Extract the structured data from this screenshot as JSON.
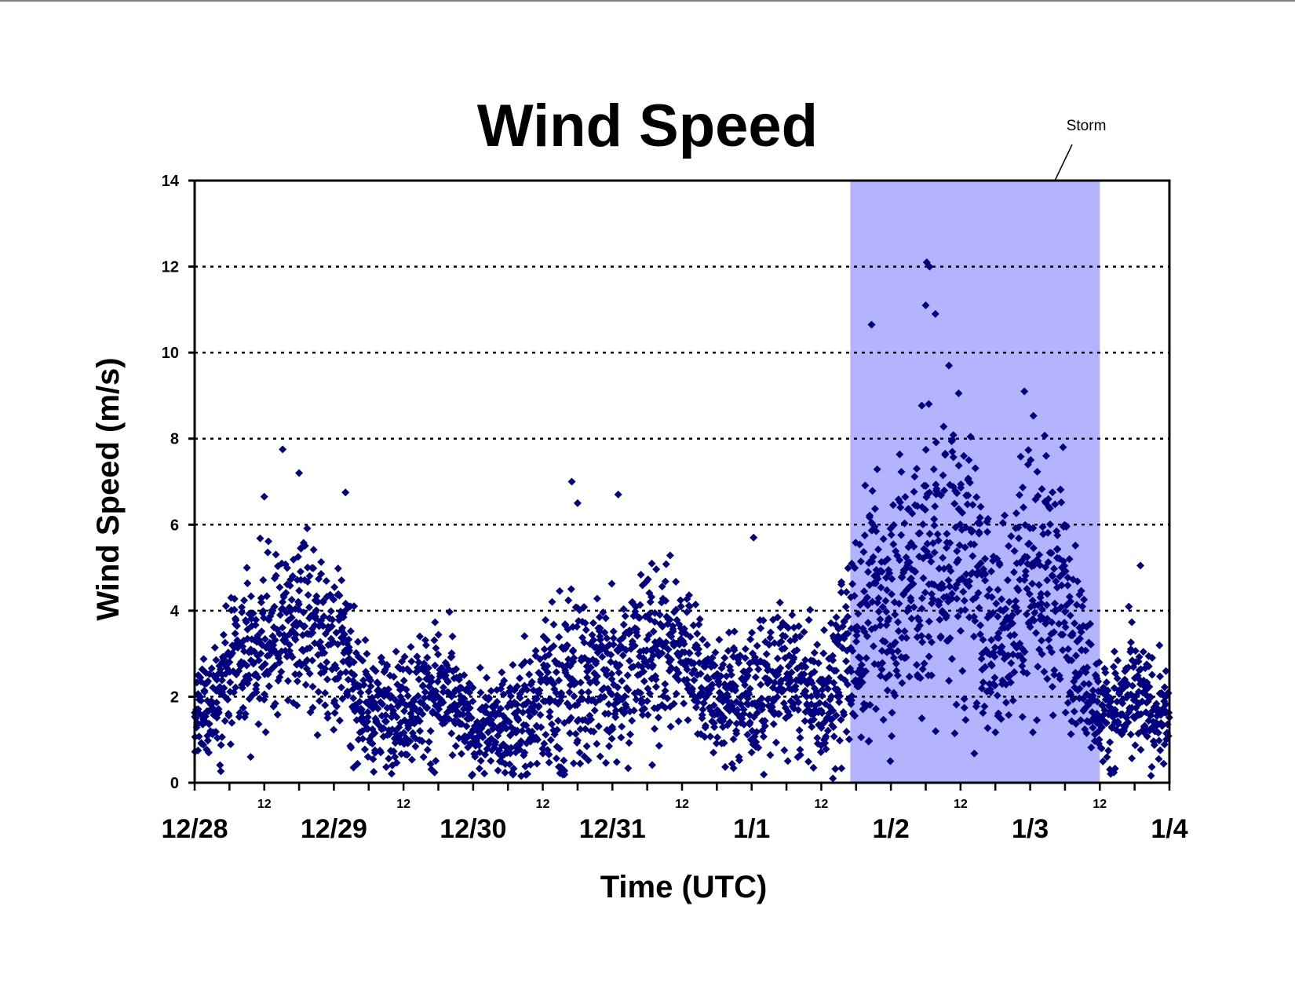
{
  "chart_data": {
    "type": "scatter",
    "title": "Wind Speed",
    "xlabel": "Time (UTC)",
    "ylabel": "Wind Speed (m/s)",
    "x_unit": "UTC date-time (Dec 28 to Jan 4)",
    "ylim": [
      0,
      14
    ],
    "yticks": [
      "0",
      "2",
      "4",
      "6",
      "8",
      "10",
      "12",
      "14"
    ],
    "xlim": [
      "12/28 00:00",
      "1/4 00:00"
    ],
    "x_major_ticks": [
      "12/28",
      "12/29",
      "12/30",
      "12/31",
      "1/1",
      "1/2",
      "1/3",
      "1/4"
    ],
    "x_minor_label": "12",
    "grid": "horizontal dotted lines at 2, 4, 6, 8, 10, 12",
    "marker": "diamond",
    "marker_color": "#000080",
    "storm_shading": {
      "label": "Storm",
      "start": "1/1 17:00",
      "end": "1/3 12:00",
      "color": "#b3b3ff"
    },
    "series": [
      {
        "envelope": {
          "time": [
            "12/28 00:00",
            "12/28 06:00",
            "12/28 12:00",
            "12/28 18:00",
            "12/29 00:00",
            "12/29 06:00",
            "12/29 12:00",
            "12/29 18:00",
            "12/30 00:00",
            "12/30 06:00",
            "12/30 12:00",
            "12/30 18:00",
            "12/31 00:00",
            "12/31 06:00",
            "12/31 12:00",
            "12/31 18:00",
            "1/1 00:00",
            "1/1 06:00",
            "1/1 12:00",
            "1/1 17:00",
            "1/1 20:00",
            "1/2 00:00",
            "1/2 06:00",
            "1/2 12:00",
            "1/2 18:00",
            "1/3 00:00",
            "1/3 06:00",
            "1/3 12:00",
            "1/3 18:00",
            "1/4 00:00"
          ],
          "median": [
            1.3,
            2.6,
            3.2,
            3.8,
            3.4,
            1.6,
            1.8,
            2.2,
            1.2,
            1.3,
            1.9,
            2.3,
            2.6,
            3.0,
            3.2,
            1.9,
            2.0,
            2.5,
            1.8,
            3.0,
            4.0,
            4.4,
            5.0,
            5.4,
            3.2,
            5.2,
            4.2,
            1.6,
            1.9,
            1.4
          ],
          "spread": [
            0.9,
            1.4,
            1.6,
            1.7,
            1.8,
            1.1,
            1.2,
            1.4,
            0.9,
            1.1,
            1.8,
            2.0,
            1.8,
            1.8,
            1.6,
            1.2,
            1.4,
            1.6,
            1.2,
            2.2,
            2.6,
            2.8,
            3.0,
            3.2,
            2.2,
            2.8,
            2.2,
            1.0,
            1.4,
            0.9
          ]
        },
        "outliers": [
          {
            "time": "12/28 15:10",
            "value": 7.75
          },
          {
            "time": "12/28 18:00",
            "value": 7.2
          },
          {
            "time": "12/29 02:00",
            "value": 6.75
          },
          {
            "time": "12/28 12:00",
            "value": 6.65
          },
          {
            "time": "12/30 17:00",
            "value": 7.0
          },
          {
            "time": "12/30 18:00",
            "value": 6.5
          },
          {
            "time": "12/31 01:00",
            "value": 6.7
          },
          {
            "time": "1/1 00:20",
            "value": 5.7
          },
          {
            "time": "1/2 06:10",
            "value": 12.1
          },
          {
            "time": "1/2 06:40",
            "value": 12.0
          },
          {
            "time": "1/2 06:00",
            "value": 11.1
          },
          {
            "time": "1/2 07:40",
            "value": 10.9
          },
          {
            "time": "1/1 20:40",
            "value": 10.65
          },
          {
            "time": "1/2 10:00",
            "value": 9.7
          },
          {
            "time": "1/2 23:00",
            "value": 9.1
          },
          {
            "time": "1/3 05:40",
            "value": 7.8
          },
          {
            "time": "1/3 19:00",
            "value": 5.05
          },
          {
            "time": "1/2 05:20",
            "value": 1.5
          },
          {
            "time": "1/1 14:00",
            "value": 0.1
          }
        ]
      }
    ]
  }
}
